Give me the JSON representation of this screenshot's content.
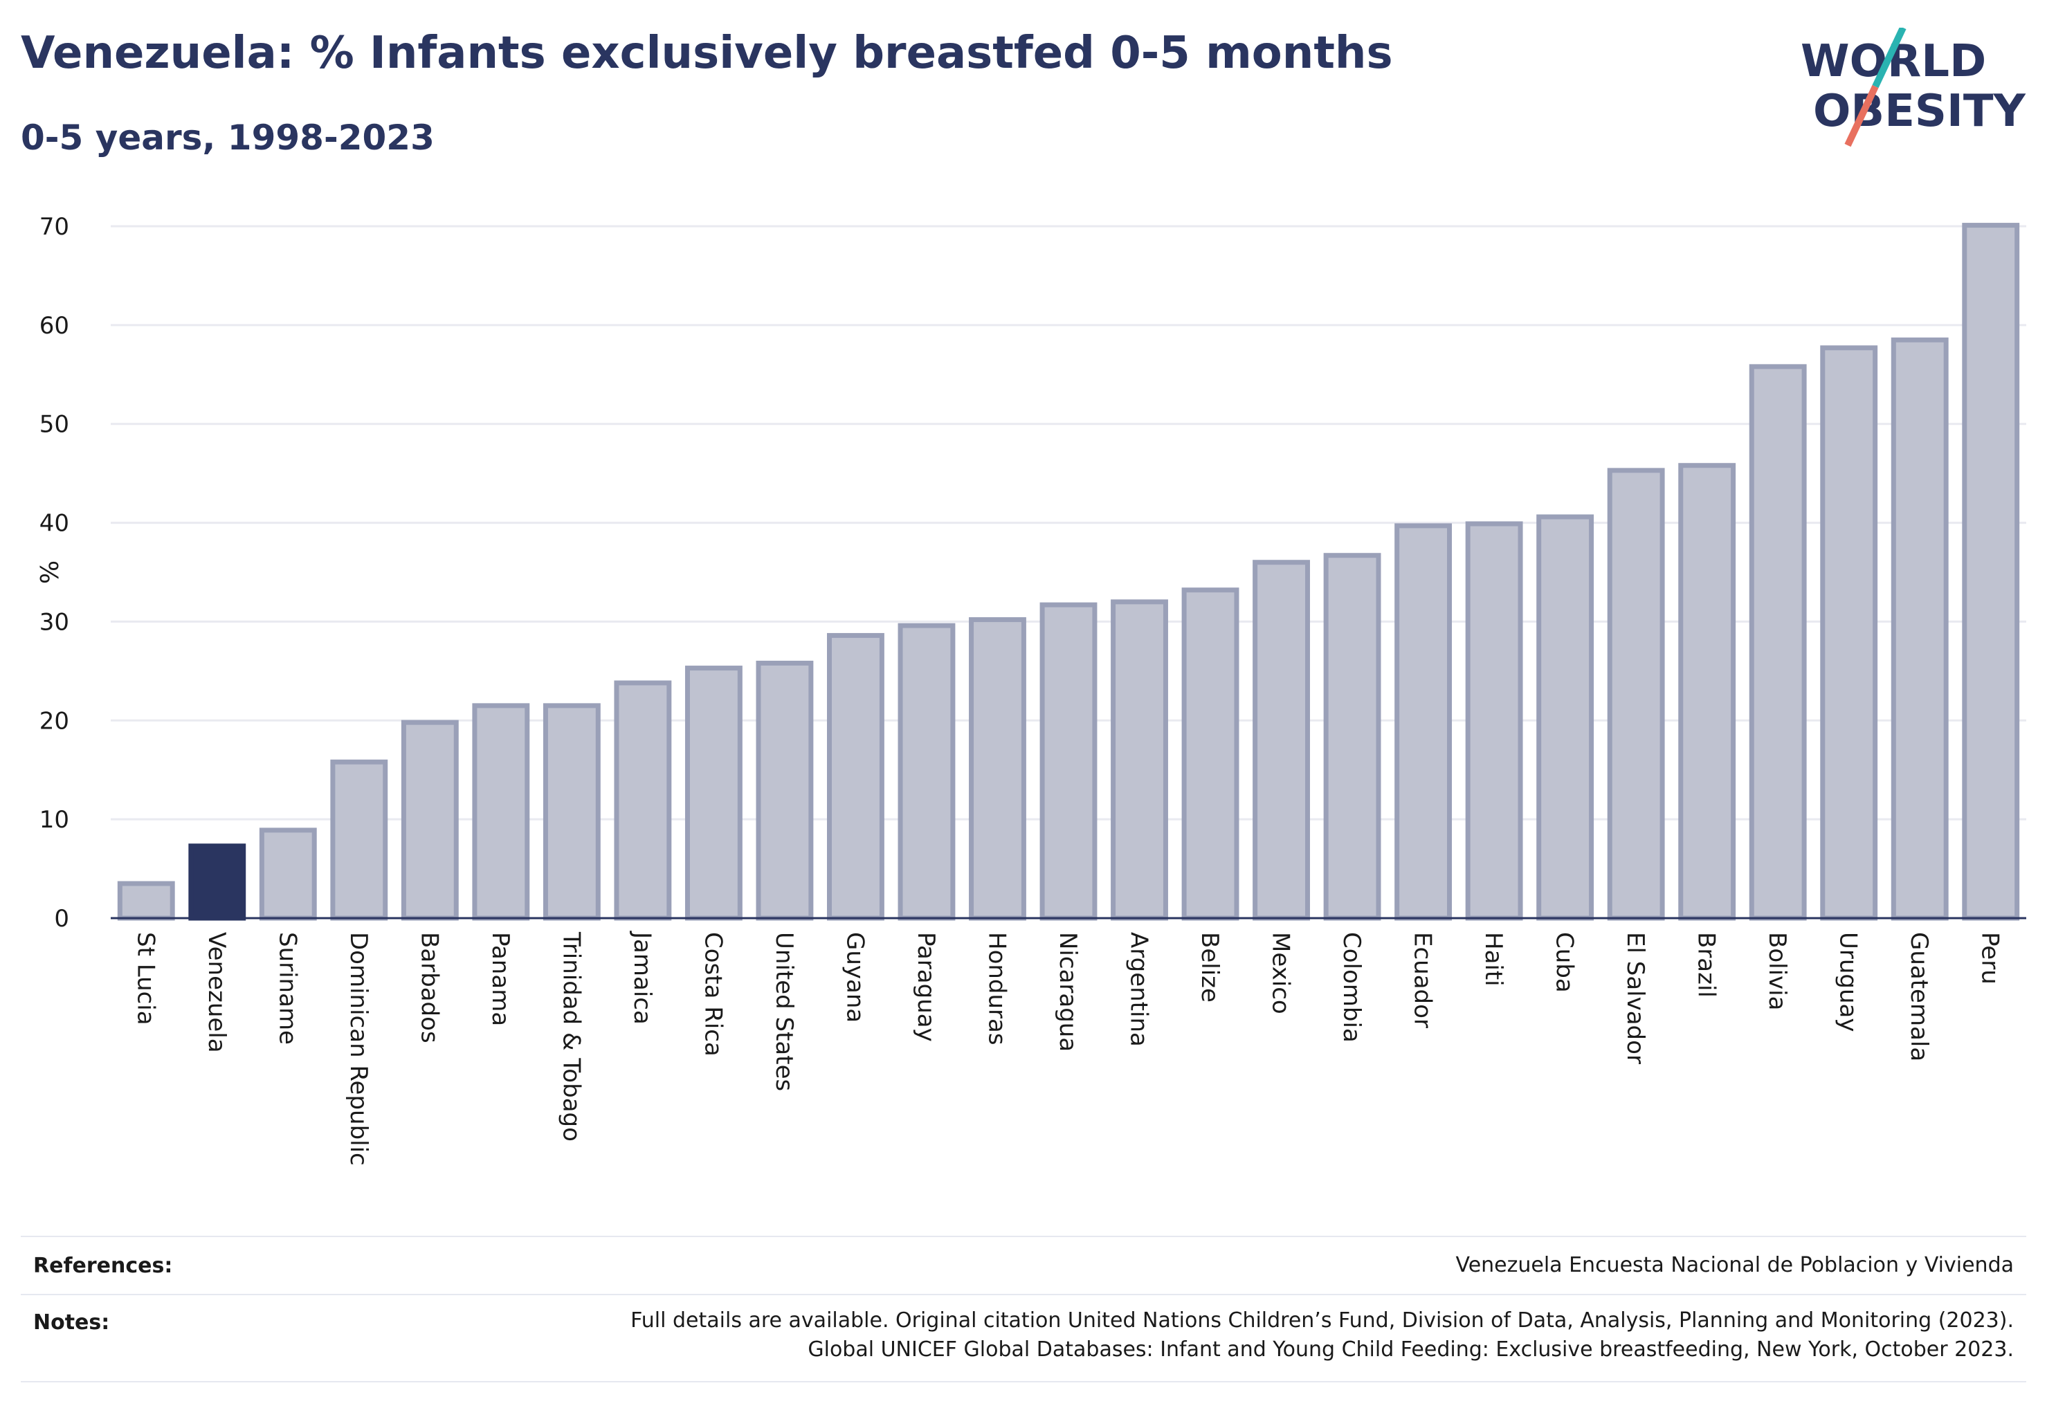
{
  "header": {
    "title": "Venezuela: % Infants exclusively breastfed 0-5 months",
    "subtitle": "0-5 years, 1998-2023"
  },
  "logo": {
    "line1": "WORLD",
    "line2": "OBESITY"
  },
  "colors": {
    "highlight": "#2a3560",
    "bar_fill": "#bfc2d0",
    "bar_stroke": "#9aa0b8",
    "text": "#2a3560",
    "logo_teal": "#2ab3b1",
    "logo_coral": "#e8705f"
  },
  "chart_data": {
    "type": "bar",
    "title": "",
    "xlabel": "",
    "ylabel": "%",
    "ylim": [
      0,
      70
    ],
    "yticks": [
      0,
      10,
      20,
      30,
      40,
      50,
      60,
      70
    ],
    "grid": true,
    "highlight": "Venezuela",
    "categories": [
      "St Lucia",
      "Venezuela",
      "Suriname",
      "Dominican Republic",
      "Barbados",
      "Panama",
      "Trinidad & Tobago",
      "Jamaica",
      "Costa Rica",
      "United States",
      "Guyana",
      "Paraguay",
      "Honduras",
      "Nicaragua",
      "Argentina",
      "Belize",
      "Mexico",
      "Colombia",
      "Ecuador",
      "Haiti",
      "Cuba",
      "El Salvador",
      "Brazil",
      "Bolivia",
      "Uruguay",
      "Guatemala",
      "Peru"
    ],
    "values": [
      3.5,
      7.3,
      8.9,
      15.8,
      19.8,
      21.5,
      21.5,
      23.8,
      25.3,
      25.8,
      28.6,
      29.6,
      30.2,
      31.7,
      32.0,
      33.2,
      36.0,
      36.7,
      39.7,
      39.9,
      40.6,
      45.3,
      45.8,
      55.8,
      57.7,
      58.5,
      70.1
    ]
  },
  "footer": {
    "references_label": "References:",
    "references_text": "Venezuela Encuesta Nacional de Poblacion y Vivienda",
    "notes_label": "Notes:",
    "notes_line1": "Full details are available. Original citation United Nations Children’s Fund, Division of Data, Analysis, Planning and Monitoring (2023).",
    "notes_line2": "Global UNICEF Global Databases: Infant and Young Child Feeding: Exclusive breastfeeding, New York, October 2023."
  }
}
